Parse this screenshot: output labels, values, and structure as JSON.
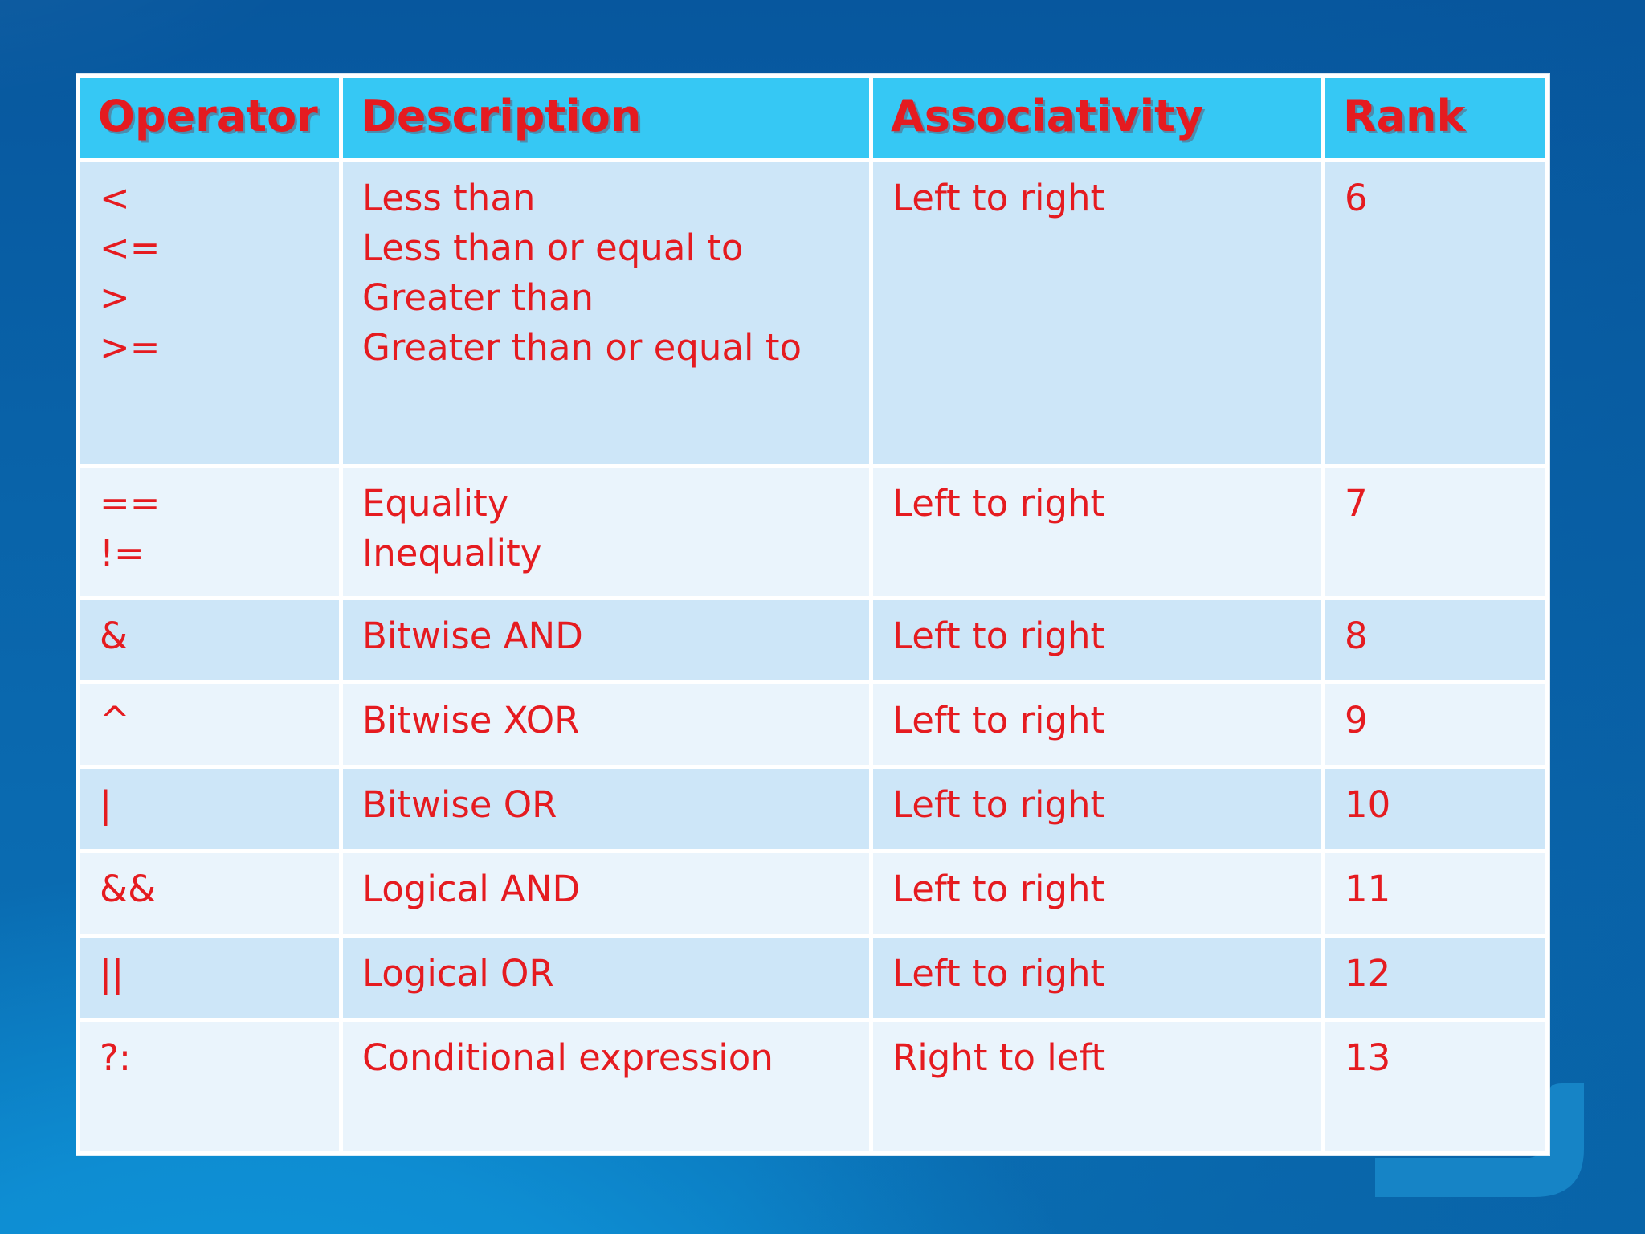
{
  "slide": {
    "kind": "presentation-slide",
    "background": {
      "style": "blue gradient, dark at top, bright cyan-blue glow at bottom left",
      "accent_shape": "rounded-corner bracket at bottom right"
    }
  },
  "table": {
    "columns": [
      {
        "key": "operator",
        "label": "Operator"
      },
      {
        "key": "description",
        "label": "Description"
      },
      {
        "key": "associativity",
        "label": "Associativity"
      },
      {
        "key": "rank",
        "label": "Rank"
      }
    ],
    "rows": [
      {
        "operator": [
          "<",
          "<=",
          ">",
          ">="
        ],
        "description": [
          "Less than",
          "Less than or equal to",
          "Greater than",
          "Greater than or equal to"
        ],
        "associativity": "Left to right",
        "rank": "6"
      },
      {
        "operator": [
          "==",
          "!="
        ],
        "description": [
          "Equality",
          "Inequality"
        ],
        "associativity": "Left to right",
        "rank": "7"
      },
      {
        "operator": [
          "&"
        ],
        "description": [
          "Bitwise AND"
        ],
        "associativity": "Left to right",
        "rank": "8"
      },
      {
        "operator": [
          "^"
        ],
        "description": [
          "Bitwise XOR"
        ],
        "associativity": "Left to right",
        "rank": "9"
      },
      {
        "operator": [
          "|"
        ],
        "description": [
          "Bitwise OR"
        ],
        "associativity": "Left to right",
        "rank": "10"
      },
      {
        "operator": [
          "&&"
        ],
        "description": [
          "Logical AND"
        ],
        "associativity": "Left to right",
        "rank": "11"
      },
      {
        "operator": [
          "||"
        ],
        "description": [
          "Logical OR"
        ],
        "associativity": "Left to right",
        "rank": "12"
      },
      {
        "operator": [
          "?:"
        ],
        "description": [
          "Conditional expression"
        ],
        "associativity": "Right to left",
        "rank": "13"
      }
    ]
  },
  "colors": {
    "header_bg": "#36c8f4",
    "row_odd_bg": "#cde6f8",
    "row_even_bg": "#eaf4fc",
    "grid": "#ffffff",
    "text_red": "#e51b20",
    "bg_top": "#07579e",
    "bg_bottom": "#0a70b5",
    "bg_glow": "#0f97dc",
    "accent": "#1786c7"
  }
}
